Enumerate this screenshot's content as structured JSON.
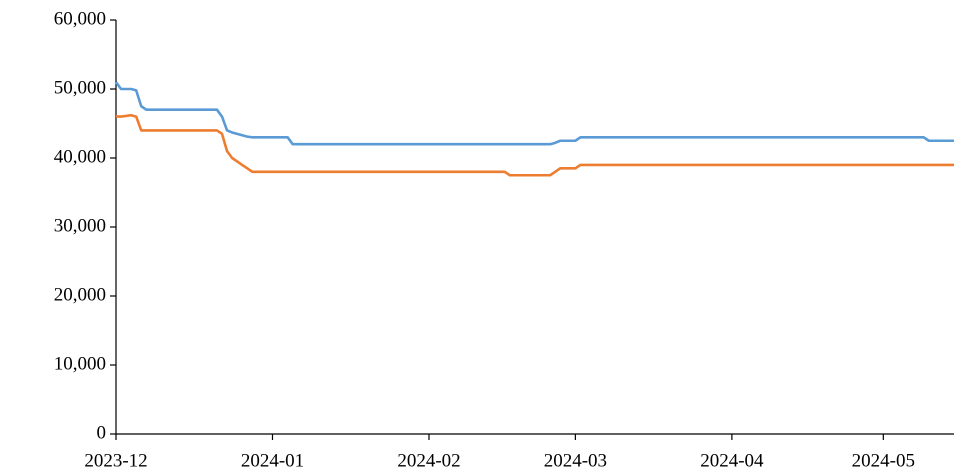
{
  "chart_data": {
    "type": "line",
    "categories": [
      "2023-12",
      null,
      null,
      null,
      null,
      null,
      null,
      null,
      null,
      null,
      null,
      null,
      null,
      null,
      null,
      null,
      null,
      null,
      null,
      null,
      null,
      null,
      null,
      null,
      null,
      null,
      null,
      null,
      null,
      null,
      null,
      "2024-01",
      null,
      null,
      null,
      null,
      null,
      null,
      null,
      null,
      null,
      null,
      null,
      null,
      null,
      null,
      null,
      null,
      null,
      null,
      null,
      null,
      null,
      null,
      null,
      null,
      null,
      null,
      null,
      null,
      null,
      null,
      "2024-02",
      null,
      null,
      null,
      null,
      null,
      null,
      null,
      null,
      null,
      null,
      null,
      null,
      null,
      null,
      null,
      null,
      null,
      null,
      null,
      null,
      null,
      null,
      null,
      null,
      null,
      null,
      null,
      null,
      "2024-03",
      null,
      null,
      null,
      null,
      null,
      null,
      null,
      null,
      null,
      null,
      null,
      null,
      null,
      null,
      null,
      null,
      null,
      null,
      null,
      null,
      null,
      null,
      null,
      null,
      null,
      null,
      null,
      null,
      null,
      null,
      "2024-04",
      null,
      null,
      null,
      null,
      null,
      null,
      null,
      null,
      null,
      null,
      null,
      null,
      null,
      null,
      null,
      null,
      null,
      null,
      null,
      null,
      null,
      null,
      null,
      null,
      null,
      null,
      null,
      null,
      null,
      "2024-05",
      null,
      null,
      null,
      null,
      null,
      null,
      null,
      null,
      null,
      null,
      null,
      null,
      null,
      null
    ],
    "series": [
      {
        "color": "#5b9bd5",
        "values": [
          51000,
          50000,
          50000,
          50000,
          49800,
          47500,
          47000,
          47000,
          47000,
          47000,
          47000,
          47000,
          47000,
          47000,
          47000,
          47000,
          47000,
          47000,
          47000,
          47000,
          47000,
          46000,
          44000,
          43700,
          43500,
          43300,
          43100,
          43000,
          43000,
          43000,
          43000,
          43000,
          43000,
          43000,
          43000,
          42000,
          42000,
          42000,
          42000,
          42000,
          42000,
          42000,
          42000,
          42000,
          42000,
          42000,
          42000,
          42000,
          42000,
          42000,
          42000,
          42000,
          42000,
          42000,
          42000,
          42000,
          42000,
          42000,
          42000,
          42000,
          42000,
          42000,
          42000,
          42000,
          42000,
          42000,
          42000,
          42000,
          42000,
          42000,
          42000,
          42000,
          42000,
          42000,
          42000,
          42000,
          42000,
          42000,
          42000,
          42000,
          42000,
          42000,
          42000,
          42000,
          42000,
          42000,
          42000,
          42200,
          42500,
          42500,
          42500,
          42500,
          43000,
          43000,
          43000,
          43000,
          43000,
          43000,
          43000,
          43000,
          43000,
          43000,
          43000,
          43000,
          43000,
          43000,
          43000,
          43000,
          43000,
          43000,
          43000,
          43000,
          43000,
          43000,
          43000,
          43000,
          43000,
          43000,
          43000,
          43000,
          43000,
          43000,
          43000,
          43000,
          43000,
          43000,
          43000,
          43000,
          43000,
          43000,
          43000,
          43000,
          43000,
          43000,
          43000,
          43000,
          43000,
          43000,
          43000,
          43000,
          43000,
          43000,
          43000,
          43000,
          43000,
          43000,
          43000,
          43000,
          43000,
          43000,
          43000,
          43000,
          43000,
          43000,
          43000,
          43000,
          43000,
          43000,
          43000,
          43000,
          43000,
          42500,
          42500,
          42500,
          42500,
          42500,
          42500
        ]
      },
      {
        "color": "#ed7d31",
        "values": [
          46000,
          46000,
          46100,
          46200,
          46000,
          44000,
          44000,
          44000,
          44000,
          44000,
          44000,
          44000,
          44000,
          44000,
          44000,
          44000,
          44000,
          44000,
          44000,
          44000,
          44000,
          43500,
          41000,
          40000,
          39500,
          39000,
          38500,
          38000,
          38000,
          38000,
          38000,
          38000,
          38000,
          38000,
          38000,
          38000,
          38000,
          38000,
          38000,
          38000,
          38000,
          38000,
          38000,
          38000,
          38000,
          38000,
          38000,
          38000,
          38000,
          38000,
          38000,
          38000,
          38000,
          38000,
          38000,
          38000,
          38000,
          38000,
          38000,
          38000,
          38000,
          38000,
          38000,
          38000,
          38000,
          38000,
          38000,
          38000,
          38000,
          38000,
          38000,
          38000,
          38000,
          38000,
          38000,
          38000,
          38000,
          38000,
          37500,
          37500,
          37500,
          37500,
          37500,
          37500,
          37500,
          37500,
          37500,
          38000,
          38500,
          38500,
          38500,
          38500,
          39000,
          39000,
          39000,
          39000,
          39000,
          39000,
          39000,
          39000,
          39000,
          39000,
          39000,
          39000,
          39000,
          39000,
          39000,
          39000,
          39000,
          39000,
          39000,
          39000,
          39000,
          39000,
          39000,
          39000,
          39000,
          39000,
          39000,
          39000,
          39000,
          39000,
          39000,
          39000,
          39000,
          39000,
          39000,
          39000,
          39000,
          39000,
          39000,
          39000,
          39000,
          39000,
          39000,
          39000,
          39000,
          39000,
          39000,
          39000,
          39000,
          39000,
          39000,
          39000,
          39000,
          39000,
          39000,
          39000,
          39000,
          39000,
          39000,
          39000,
          39000,
          39000,
          39000,
          39000,
          39000,
          39000,
          39000,
          39000,
          39000,
          39000,
          39000,
          39000,
          39000,
          39000,
          39000
        ]
      }
    ],
    "ylim": [
      0,
      60000
    ],
    "yticks": [
      0,
      {
        "value": 10000,
        "label": "10,000"
      },
      {
        "value": 20000,
        "label": "20,000"
      },
      {
        "value": 30000,
        "label": "30,000"
      },
      {
        "value": 40000,
        "label": "40,000"
      },
      {
        "value": 50000,
        "label": "50,000"
      },
      {
        "value": 60000,
        "label": "60,000"
      }
    ],
    "grid": false
  }
}
